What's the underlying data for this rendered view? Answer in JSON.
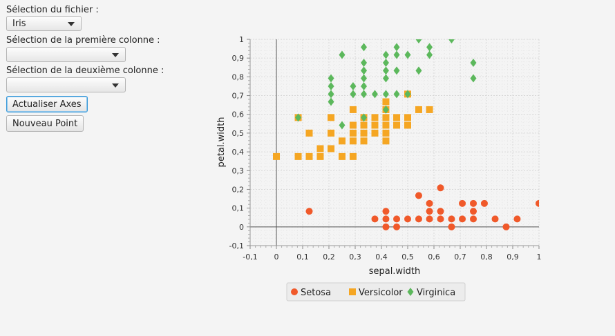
{
  "controls": {
    "file_label": "Sélection du fichier :",
    "file_value": "Iris",
    "col1_label": "Sélection de la première colonne :",
    "col1_value": "",
    "col2_label": "Sélection de la deuxième colonne :",
    "col2_value": "",
    "update_axes_button": "Actualiser Axes",
    "new_point_button": "Nouveau Point"
  },
  "chart_data": {
    "type": "scatter",
    "xlabel": "sepal.width",
    "ylabel": "petal.width",
    "xlim": [
      -0.1,
      1.0
    ],
    "ylim": [
      -0.1,
      1.0
    ],
    "x_ticks": [
      "-0,1",
      "0",
      "0,1",
      "0,2",
      "0,3",
      "0,4",
      "0,5",
      "0,6",
      "0,7",
      "0,8",
      "0,9",
      "1"
    ],
    "y_ticks": [
      "-0,1",
      "0",
      "0,1",
      "0,2",
      "0,3",
      "0,4",
      "0,5",
      "0,6",
      "0,7",
      "0,8",
      "0,9",
      "1"
    ],
    "grid": true,
    "legend_position": "bottom",
    "series": [
      {
        "name": "Setosa",
        "color": "#f0592a",
        "marker": "circle",
        "points": [
          [
            0.125,
            0.083
          ],
          [
            0.375,
            0.042
          ],
          [
            0.417,
            0.0
          ],
          [
            0.417,
            0.042
          ],
          [
            0.417,
            0.083
          ],
          [
            0.458,
            0.0
          ],
          [
            0.458,
            0.042
          ],
          [
            0.5,
            0.042
          ],
          [
            0.542,
            0.042
          ],
          [
            0.542,
            0.167
          ],
          [
            0.583,
            0.042
          ],
          [
            0.583,
            0.083
          ],
          [
            0.583,
            0.125
          ],
          [
            0.625,
            0.042
          ],
          [
            0.625,
            0.083
          ],
          [
            0.625,
            0.208
          ],
          [
            0.667,
            0.0
          ],
          [
            0.667,
            0.042
          ],
          [
            0.708,
            0.042
          ],
          [
            0.708,
            0.125
          ],
          [
            0.75,
            0.042
          ],
          [
            0.75,
            0.083
          ],
          [
            0.75,
            0.125
          ],
          [
            0.792,
            0.125
          ],
          [
            0.833,
            0.042
          ],
          [
            0.875,
            0.0
          ],
          [
            0.917,
            0.042
          ],
          [
            1.0,
            0.125
          ]
        ]
      },
      {
        "name": "Versicolor",
        "color": "#f5a623",
        "marker": "square",
        "points": [
          [
            0.0,
            0.375
          ],
          [
            0.083,
            0.375
          ],
          [
            0.083,
            0.583
          ],
          [
            0.125,
            0.375
          ],
          [
            0.125,
            0.5
          ],
          [
            0.167,
            0.375
          ],
          [
            0.167,
            0.417
          ],
          [
            0.208,
            0.417
          ],
          [
            0.208,
            0.5
          ],
          [
            0.208,
            0.583
          ],
          [
            0.25,
            0.375
          ],
          [
            0.25,
            0.458
          ],
          [
            0.292,
            0.375
          ],
          [
            0.292,
            0.458
          ],
          [
            0.292,
            0.5
          ],
          [
            0.292,
            0.542
          ],
          [
            0.292,
            0.625
          ],
          [
            0.333,
            0.458
          ],
          [
            0.333,
            0.5
          ],
          [
            0.333,
            0.542
          ],
          [
            0.333,
            0.583
          ],
          [
            0.375,
            0.5
          ],
          [
            0.375,
            0.542
          ],
          [
            0.375,
            0.583
          ],
          [
            0.417,
            0.458
          ],
          [
            0.417,
            0.5
          ],
          [
            0.417,
            0.542
          ],
          [
            0.417,
            0.583
          ],
          [
            0.417,
            0.625
          ],
          [
            0.417,
            0.667
          ],
          [
            0.458,
            0.542
          ],
          [
            0.458,
            0.583
          ],
          [
            0.5,
            0.542
          ],
          [
            0.5,
            0.583
          ],
          [
            0.5,
            0.708
          ],
          [
            0.542,
            0.625
          ],
          [
            0.583,
            0.625
          ]
        ]
      },
      {
        "name": "Virginica",
        "color": "#5cb85c",
        "marker": "diamond",
        "points": [
          [
            0.083,
            0.583
          ],
          [
            0.208,
            0.667
          ],
          [
            0.208,
            0.708
          ],
          [
            0.208,
            0.75
          ],
          [
            0.208,
            0.792
          ],
          [
            0.25,
            0.542
          ],
          [
            0.25,
            0.917
          ],
          [
            0.292,
            0.708
          ],
          [
            0.292,
            0.75
          ],
          [
            0.333,
            0.583
          ],
          [
            0.333,
            0.708
          ],
          [
            0.333,
            0.75
          ],
          [
            0.333,
            0.792
          ],
          [
            0.333,
            0.833
          ],
          [
            0.333,
            0.875
          ],
          [
            0.333,
            0.958
          ],
          [
            0.375,
            0.708
          ],
          [
            0.417,
            0.625
          ],
          [
            0.417,
            0.708
          ],
          [
            0.417,
            0.792
          ],
          [
            0.417,
            0.833
          ],
          [
            0.417,
            0.875
          ],
          [
            0.417,
            0.917
          ],
          [
            0.458,
            0.708
          ],
          [
            0.458,
            0.833
          ],
          [
            0.458,
            0.917
          ],
          [
            0.458,
            0.958
          ],
          [
            0.5,
            0.708
          ],
          [
            0.5,
            0.917
          ],
          [
            0.542,
            0.833
          ],
          [
            0.542,
            1.0
          ],
          [
            0.583,
            0.917
          ],
          [
            0.583,
            0.958
          ],
          [
            0.667,
            1.0
          ],
          [
            0.75,
            0.792
          ],
          [
            0.75,
            0.875
          ]
        ]
      }
    ]
  }
}
